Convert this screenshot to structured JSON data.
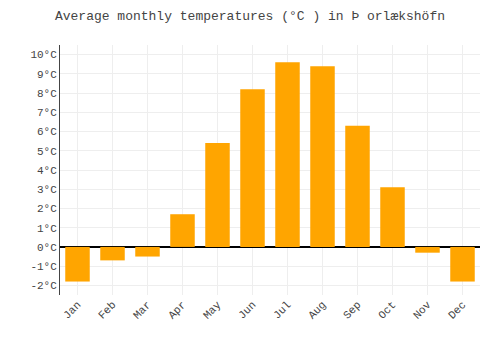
{
  "chart_data": {
    "type": "bar",
    "title": "Average monthly temperatures (°C ) in Þ orlækshöfn",
    "categories": [
      "Jan",
      "Feb",
      "Mar",
      "Apr",
      "May",
      "Jun",
      "Jul",
      "Aug",
      "Sep",
      "Oct",
      "Nov",
      "Dec"
    ],
    "values": [
      -1.8,
      -0.7,
      -0.5,
      1.7,
      5.4,
      8.2,
      9.6,
      9.4,
      6.3,
      3.1,
      -0.3,
      -1.8
    ],
    "color": "#FFA500",
    "ylim": [
      -2.5,
      10.5
    ],
    "yticks": [
      {
        "value": -2,
        "label": "-2°C"
      },
      {
        "value": -1,
        "label": "-1°C"
      },
      {
        "value": 0,
        "label": "0°C"
      },
      {
        "value": 1,
        "label": "1°C"
      },
      {
        "value": 2,
        "label": "2°C"
      },
      {
        "value": 3,
        "label": "3°C"
      },
      {
        "value": 4,
        "label": "4°C"
      },
      {
        "value": 5,
        "label": "5°C"
      },
      {
        "value": 6,
        "label": "6°C"
      },
      {
        "value": 7,
        "label": "7°C"
      },
      {
        "value": 8,
        "label": "8°C"
      },
      {
        "value": 9,
        "label": "9°C"
      },
      {
        "value": 10,
        "label": "10°C"
      }
    ],
    "grid": true
  }
}
